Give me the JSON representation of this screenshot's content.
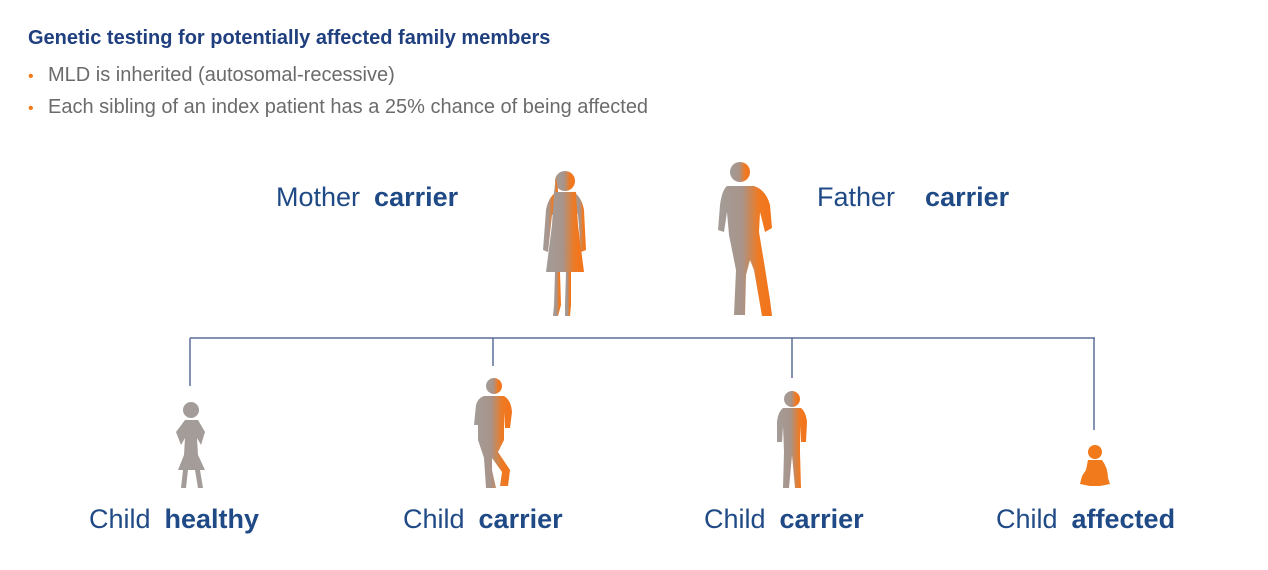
{
  "title": "Genetic testing for potentially affected family members",
  "bullets": [
    "MLD is inherited (autosomal-recessive)",
    "Each sibling of an index patient has a 25% chance of being affected"
  ],
  "parents": {
    "mother": {
      "relation": "Mother",
      "status": "carrier"
    },
    "father": {
      "relation": "Father",
      "status": "carrier"
    }
  },
  "children": [
    {
      "relation": "Child",
      "status": "healthy"
    },
    {
      "relation": "Child",
      "status": "carrier"
    },
    {
      "relation": "Child",
      "status": "carrier"
    },
    {
      "relation": "Child",
      "status": "affected"
    }
  ],
  "colors": {
    "heading": "#1f3f7f",
    "label": "#1f4a86",
    "bullet": "#f07a1c",
    "healthy": "#9a9a9a",
    "affected": "#f07a1c",
    "line": "#5a6f9a"
  }
}
